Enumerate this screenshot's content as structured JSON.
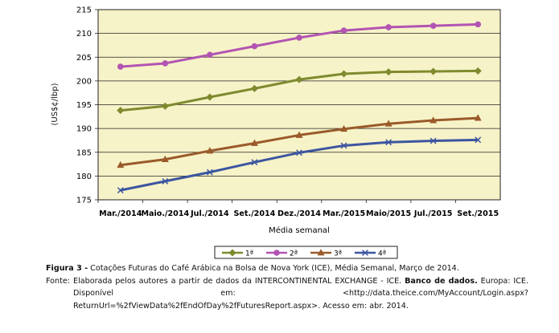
{
  "chart_data": {
    "type": "line",
    "categories": [
      "Mar./2014",
      "Maio./2014",
      "Jul./2014",
      "Set./2014",
      "Dez./2014",
      "Mar./2015",
      "Maio/2015",
      "Jul./2015",
      "Set./2015"
    ],
    "series": [
      {
        "name": "1ª",
        "color": "#7f8a2e",
        "marker": "diamond",
        "values": [
          193.8,
          194.7,
          196.6,
          198.4,
          200.3,
          201.5,
          201.9,
          202.0,
          202.1
        ]
      },
      {
        "name": "2ª",
        "color": "#b254b2",
        "marker": "circle",
        "values": [
          203.0,
          203.7,
          205.5,
          207.3,
          209.1,
          210.6,
          211.3,
          211.6,
          211.9
        ]
      },
      {
        "name": "3ª",
        "color": "#9a5a2a",
        "marker": "triangle",
        "values": [
          182.3,
          183.5,
          185.3,
          186.9,
          188.6,
          189.9,
          191.0,
          191.7,
          192.2
        ]
      },
      {
        "name": "4ª",
        "color": "#3c55a0",
        "marker": "x",
        "values": [
          177.0,
          178.9,
          180.8,
          182.9,
          184.9,
          186.4,
          187.1,
          187.4,
          187.6
        ]
      }
    ],
    "ylim": [
      175,
      215
    ],
    "yticks": [
      175,
      180,
      185,
      190,
      195,
      200,
      205,
      210,
      215
    ],
    "ylabel": "(US$¢/lbp)",
    "xlabel": "Média semanal",
    "grid": true,
    "legend_position": "bottom",
    "plot_background": "#f7f3c8"
  },
  "caption": {
    "figure_label": "Figura 3 -",
    "figure_text": "Cotações Futuras do Café Arábica na Bolsa de Nova York (ICE), Média Semanal, Março de 2014.",
    "source_label": "Fonte:",
    "source_text_1": "Elaborada pelos autores a partir de dados da INTERCONTINENTAL EXCHANGE - ICE.",
    "source_bold": "Banco de dados.",
    "source_text_2": "Europa: ICE. Disponível em: <http://data.theice.com/MyAccount/Login.aspx?ReturnUrl=%2fViewData%2fEndOfDay%2fFuturesReport.aspx>. Acesso em: abr. 2014."
  }
}
